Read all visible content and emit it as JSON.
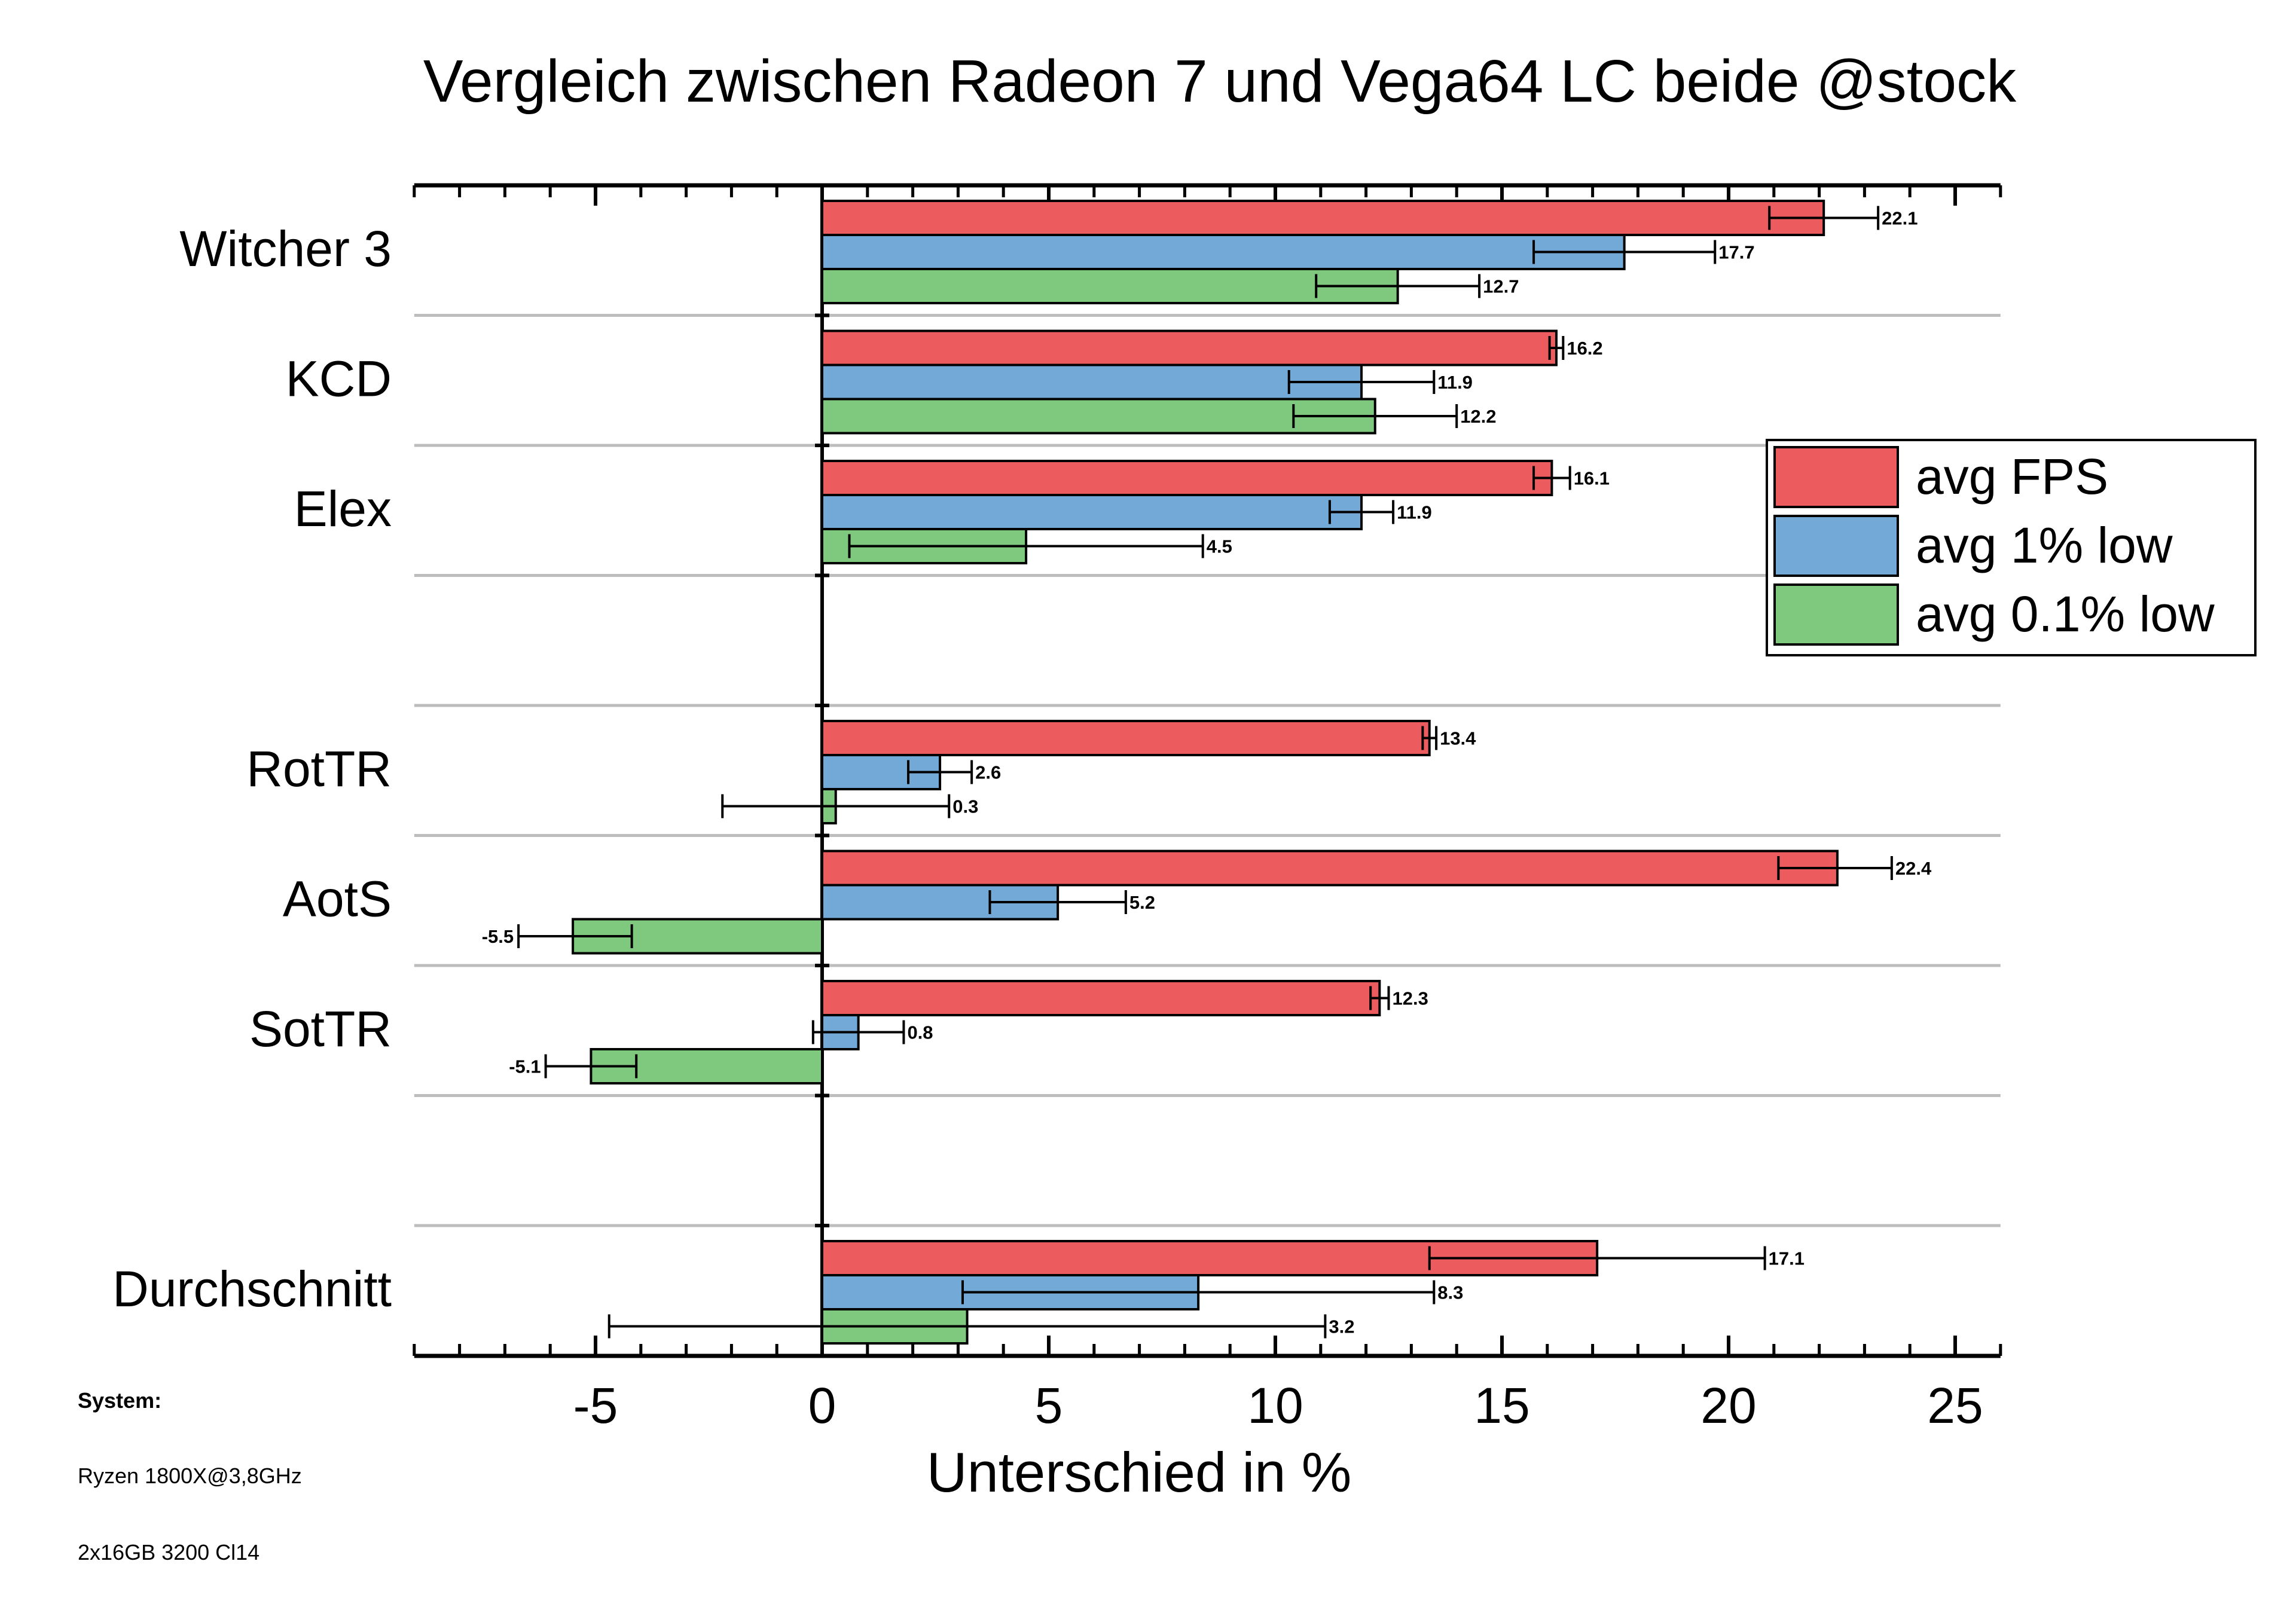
{
  "chart_data": {
    "type": "bar",
    "orientation": "horizontal",
    "title": "Vergleich zwischen Radeon 7 und Vega64 LC beide @stock",
    "xlabel": "Unterschied in %",
    "ylabel": "",
    "xlim": [
      -9,
      26
    ],
    "xticks": [
      -5,
      0,
      5,
      10,
      15,
      20,
      25
    ],
    "legend_position": "right",
    "grid": false,
    "slots": [
      "Witcher 3",
      "KCD",
      "Elex",
      "",
      "RotTR",
      "AotS",
      "SotTR",
      "",
      "Durchschnitt"
    ],
    "categories": [
      "Witcher 3",
      "KCD",
      "Elex",
      "RotTR",
      "AotS",
      "SotTR",
      "Durchschnitt"
    ],
    "series": [
      {
        "name": "avg FPS",
        "color": "#ec5b5e",
        "values": [
          22.1,
          16.2,
          16.1,
          13.4,
          22.4,
          12.3,
          17.1
        ],
        "err_low": [
          20.9,
          16.05,
          15.7,
          13.25,
          21.1,
          12.1,
          13.4
        ],
        "err_high": [
          23.3,
          16.35,
          16.5,
          13.55,
          23.6,
          12.5,
          20.8
        ]
      },
      {
        "name": "avg 1% low",
        "color": "#72a9d7",
        "values": [
          17.7,
          11.9,
          11.9,
          2.6,
          5.2,
          0.8,
          8.3
        ],
        "err_low": [
          15.7,
          10.3,
          11.2,
          1.9,
          3.7,
          -0.2,
          3.1
        ],
        "err_high": [
          19.7,
          13.5,
          12.6,
          3.3,
          6.7,
          1.8,
          13.5
        ]
      },
      {
        "name": "avg 0.1% low",
        "color": "#7fc97f",
        "values": [
          12.7,
          12.2,
          4.5,
          0.3,
          -5.5,
          -5.1,
          3.2
        ],
        "err_low": [
          10.9,
          10.4,
          0.6,
          -2.2,
          -6.7,
          -6.1,
          -4.7
        ],
        "err_high": [
          14.5,
          14.0,
          8.4,
          2.8,
          -4.2,
          -4.1,
          11.1
        ]
      }
    ],
    "value_labels": [
      [
        "22.1",
        "17.7",
        "12.7"
      ],
      [
        "16.2",
        "11.9",
        "12.2"
      ],
      [
        "16.1",
        "11.9",
        "4.5"
      ],
      [
        "13.4",
        "2.6",
        "0.3"
      ],
      [
        "22.4",
        "5.2",
        "-5.5"
      ],
      [
        "12.3",
        "0.8",
        "-5.1"
      ],
      [
        "17.1",
        "8.3",
        "3.2"
      ]
    ]
  },
  "system_info": {
    "heading": "System:",
    "cpu": "Ryzen 1800X@3,8GHz",
    "ram": "2x16GB 3200 Cl14"
  }
}
